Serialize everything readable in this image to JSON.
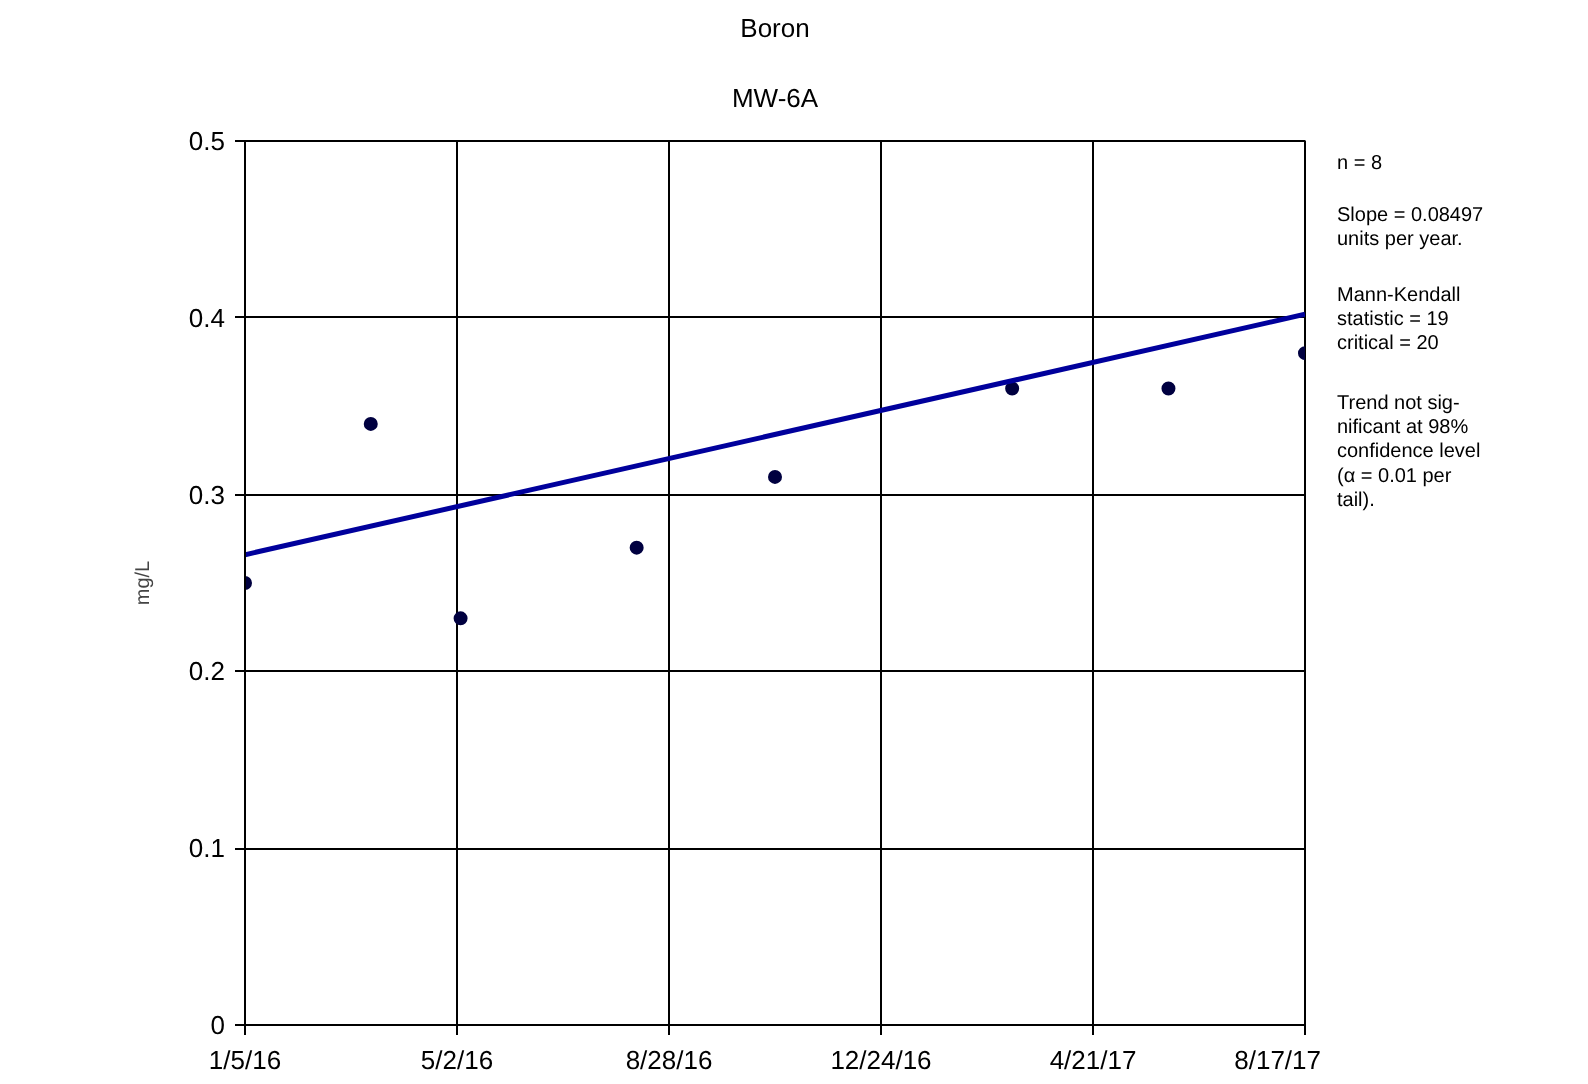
{
  "chart_data": {
    "type": "scatter",
    "title": "Boron",
    "subtitle": "MW-6A",
    "ylabel": "mg/L",
    "x": [
      "2016-01-05",
      "2016-03-15",
      "2016-05-04",
      "2016-08-10",
      "2016-10-26",
      "2017-03-07",
      "2017-06-02",
      "2017-08-17"
    ],
    "series": [
      {
        "color": "#000040",
        "values": [
          0.25,
          0.34,
          0.23,
          0.27,
          0.31,
          0.36,
          0.36,
          0.38
        ]
      },
      {
        "type": "line",
        "marker": "none",
        "color": "#00009c",
        "x": [
          "2016-01-05",
          "2017-08-17"
        ],
        "values": [
          0.266,
          0.402
        ]
      }
    ],
    "xlim": [
      "2016-01-05",
      "2017-08-17"
    ],
    "xticks": [
      {
        "value": "2016-01-05",
        "label": "1/5/16"
      },
      {
        "value": "2016-05-02",
        "label": "5/2/16"
      },
      {
        "value": "2016-08-28",
        "label": "8/28/16"
      },
      {
        "value": "2016-12-24",
        "label": "12/24/16"
      },
      {
        "value": "2017-04-21",
        "label": "4/21/17"
      },
      {
        "value": "2017-08-17",
        "label": "8/17/17"
      }
    ],
    "ylim": [
      0,
      0.5
    ],
    "yticks": [
      0,
      0.1,
      0.2,
      0.3,
      0.4,
      0.5
    ],
    "grid": true,
    "marker": "circle",
    "annotations": [
      "n = 8",
      "Slope = 0.08497\nunits per year.",
      "Mann-Kendall\nstatistic = 19\ncritical = 20",
      "Trend not sig-\nnificant at 98%\nconfidence level\n(α = 0.01 per\ntail)."
    ]
  }
}
